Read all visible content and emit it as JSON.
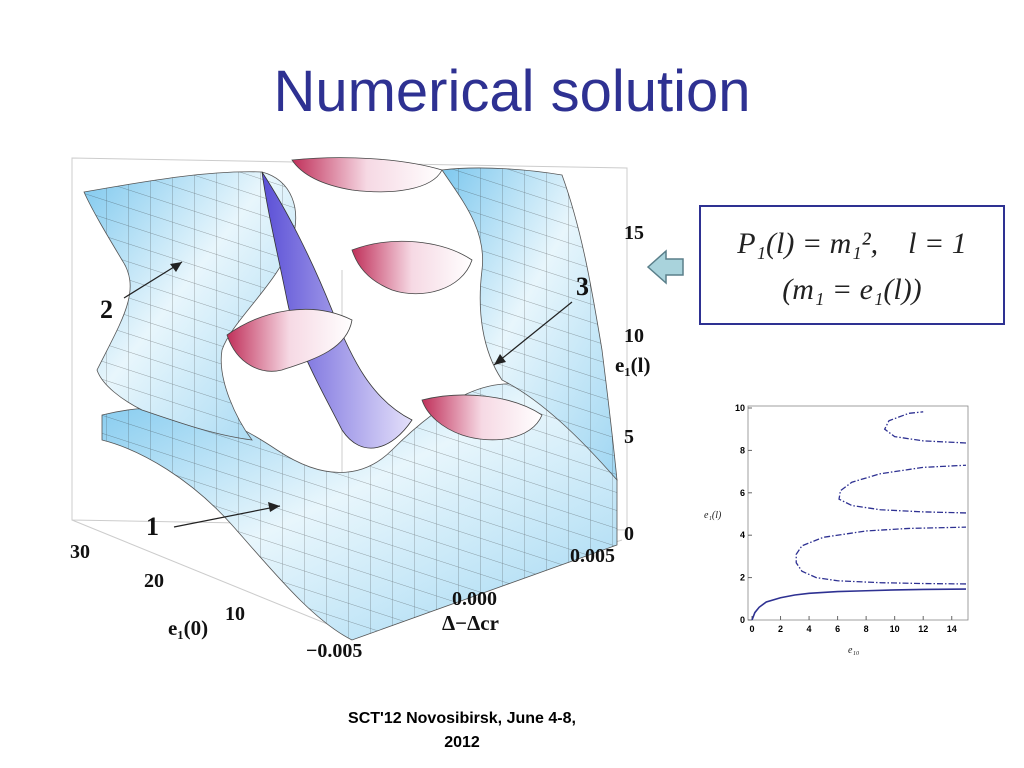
{
  "title": "Numerical solution",
  "plot3d": {
    "z_ticks": [
      "0",
      "5",
      "10",
      "15"
    ],
    "z_label": "e₁(l)",
    "x_ticks": [
      "30",
      "20",
      "10"
    ],
    "x_label": "e₁(0)",
    "y_ticks": [
      "−0.005",
      "0.000",
      "0.005"
    ],
    "y_label": "Δ−Δcr",
    "branch_labels": [
      "1",
      "2",
      "3"
    ]
  },
  "formula": {
    "line1": "P₁(l) = m₁²,    l = 1",
    "line2": "(m₁ = e₁(l))"
  },
  "footer": {
    "line1": "SCT'12  Novosibirsk, June 4-8,",
    "line2": "2012"
  },
  "chart_data": {
    "type": "line",
    "xlabel": "e₁₀",
    "ylabel": "e₁(l)",
    "xlim": [
      0,
      15
    ],
    "ylim": [
      0,
      10
    ],
    "x_ticks": [
      "0",
      "2",
      "4",
      "6",
      "8",
      "10",
      "12",
      "14"
    ],
    "y_ticks": [
      "0",
      "2",
      "4",
      "6",
      "8",
      "10"
    ],
    "series": [
      {
        "style": "solid",
        "color": "#2e3192",
        "points": [
          [
            0,
            0
          ],
          [
            0.2,
            0.35
          ],
          [
            0.5,
            0.6
          ],
          [
            1,
            0.85
          ],
          [
            2,
            1.05
          ],
          [
            3,
            1.18
          ],
          [
            4,
            1.26
          ],
          [
            6,
            1.34
          ],
          [
            8,
            1.38
          ],
          [
            10,
            1.42
          ],
          [
            12,
            1.44
          ],
          [
            15,
            1.46
          ]
        ]
      },
      {
        "style": "dashdot",
        "color": "#2e3192",
        "points": [
          [
            15,
            1.7
          ],
          [
            12,
            1.72
          ],
          [
            9,
            1.76
          ],
          [
            6,
            1.85
          ],
          [
            4.5,
            2.0
          ],
          [
            3.5,
            2.3
          ],
          [
            3.1,
            2.7
          ],
          [
            3.1,
            3.1
          ],
          [
            3.5,
            3.5
          ],
          [
            5,
            3.9
          ],
          [
            8,
            4.2
          ],
          [
            11,
            4.32
          ],
          [
            15,
            4.38
          ]
        ]
      },
      {
        "style": "dashdot",
        "color": "#2e3192",
        "points": [
          [
            15,
            5.05
          ],
          [
            12,
            5.1
          ],
          [
            9,
            5.2
          ],
          [
            7,
            5.4
          ],
          [
            6.1,
            5.7
          ],
          [
            6.2,
            6.1
          ],
          [
            7,
            6.5
          ],
          [
            9,
            6.9
          ],
          [
            12,
            7.2
          ],
          [
            15,
            7.3
          ]
        ]
      },
      {
        "style": "dashdot",
        "color": "#2e3192",
        "points": [
          [
            15,
            8.35
          ],
          [
            12,
            8.45
          ],
          [
            10,
            8.65
          ],
          [
            9.3,
            9.0
          ],
          [
            9.6,
            9.4
          ],
          [
            11,
            9.75
          ],
          [
            12,
            9.82
          ]
        ]
      }
    ]
  }
}
